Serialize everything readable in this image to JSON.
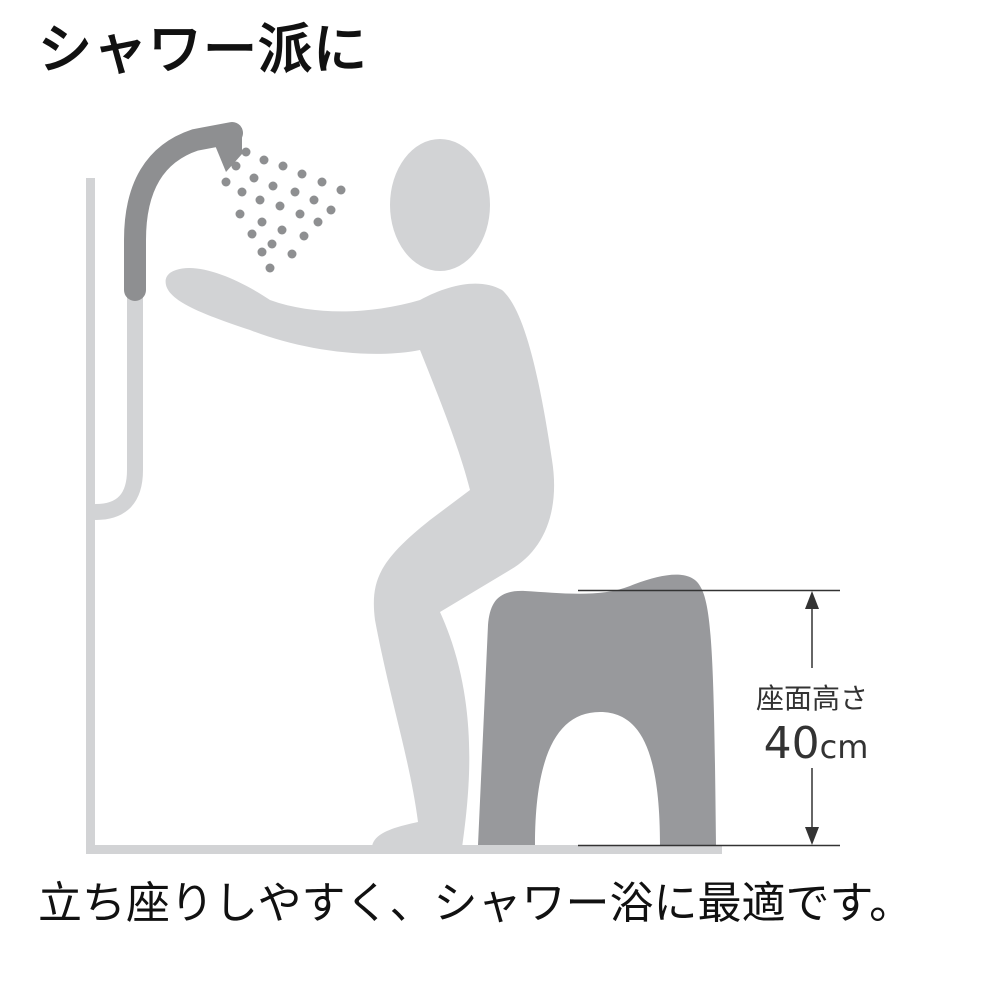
{
  "heading": "シャワー派に",
  "seat_height": {
    "label": "座面高さ",
    "value": "40",
    "unit": "cm"
  },
  "caption": "立ち座りしやすく、シャワー浴に最適です。",
  "colors": {
    "figure": "#d2d3d5",
    "stool": "#98999c",
    "shower_head": "#8e8f91",
    "water_drops": "#8e8f91",
    "wall_rail": "#d2d3d5",
    "dimension_lines": "#333333",
    "text": "#111111"
  },
  "icons": {
    "person": "person-figure-icon",
    "shower": "shower-head-icon",
    "stool": "bath-stool-icon",
    "arrow": "double-arrow-icon"
  }
}
